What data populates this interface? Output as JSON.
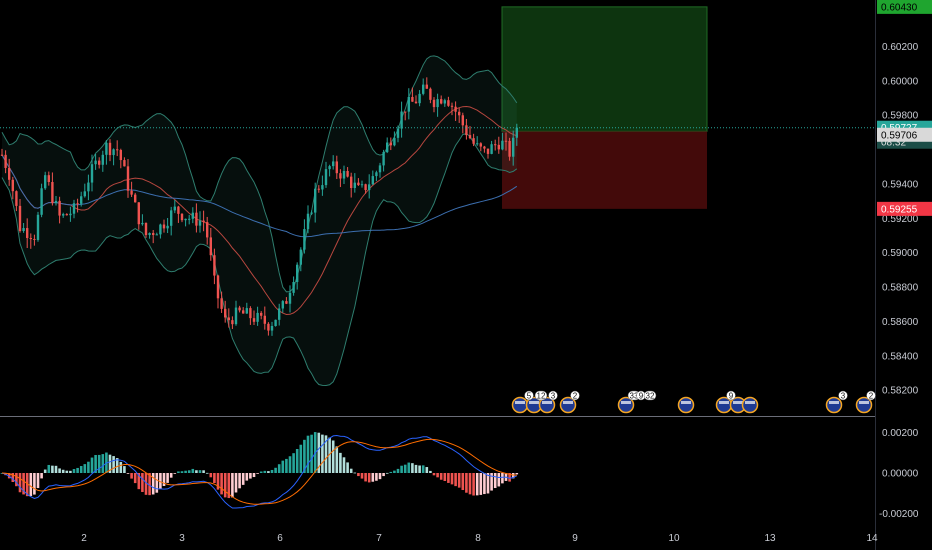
{
  "colors": {
    "background": "#000000",
    "bull": "#26a69a",
    "bear": "#ef5350",
    "bollinger": "#2e7d6e",
    "ma_red": "#b7473f",
    "ma_blue": "#3c6fb0",
    "macd_line": "#2962ff",
    "signal_line": "#ff6d00",
    "profit_zone": "#0f3d12",
    "loss_zone": "#4a0b0b",
    "current_price_line": "#26a69a",
    "grid": "#1c1c1c"
  },
  "chart_data": [
    {
      "type": "candlestick",
      "title": "",
      "x_tick_labels": [
        "2",
        "3",
        "6",
        "7",
        "8",
        "9",
        "10",
        "13",
        "14"
      ],
      "y_tick_labels": [
        "0.60200",
        "0.60000",
        "0.59800",
        "0.59400",
        "0.59200",
        "0.59000",
        "0.58800",
        "0.58600",
        "0.58400",
        "0.58200"
      ],
      "ylim": [
        0.5805,
        0.6047
      ],
      "grid": false,
      "indicators": [
        "Bollinger Bands",
        "Moving Average",
        "Moving Average"
      ],
      "price_tags": {
        "target": "0.60430",
        "current": "0.59727",
        "countdown": "08:32",
        "entry": "0.59706",
        "stop": "0.59255"
      },
      "position": {
        "type": "long",
        "entry": 0.59706,
        "target": 0.6043,
        "stop": 0.59255
      },
      "event_labels": [
        "5",
        "12",
        "3",
        "2",
        "33",
        "9",
        "32",
        "9",
        "3",
        "2"
      ]
    },
    {
      "type": "bar",
      "title": "MACD",
      "y_tick_labels": [
        "0.00200",
        "0.00000",
        "-0.00200"
      ],
      "ylim": [
        -0.0027,
        0.0027
      ],
      "series": [
        {
          "name": "",
          "role": "histogram"
        },
        {
          "name": "",
          "role": "macd"
        },
        {
          "name": "",
          "role": "signal"
        }
      ]
    }
  ]
}
